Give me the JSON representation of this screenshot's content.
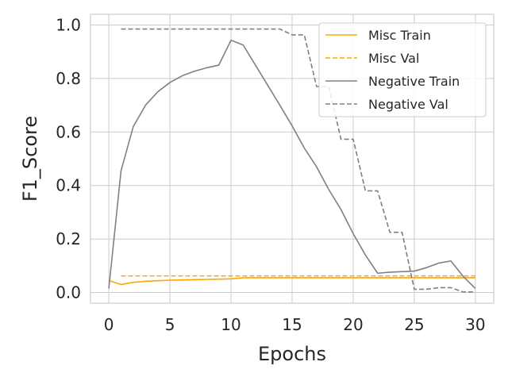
{
  "chart_data": {
    "type": "line",
    "xlabel": "Epochs",
    "ylabel": "F1_Score",
    "xlim": [
      -1.5,
      31.5
    ],
    "ylim": [
      -0.04,
      1.04
    ],
    "xticks": [
      0,
      5,
      10,
      15,
      20,
      25,
      30
    ],
    "yticks": [
      0.0,
      0.2,
      0.4,
      0.6,
      0.8,
      1.0
    ],
    "xtick_labels": [
      "0",
      "5",
      "10",
      "15",
      "20",
      "25",
      "30"
    ],
    "ytick_labels": [
      "0.0",
      "0.2",
      "0.4",
      "0.6",
      "0.8",
      "1.0"
    ],
    "grid": true,
    "legend_position": "top-right",
    "series": [
      {
        "name": "Misc Train",
        "color": "#FFA500",
        "dash": "solid",
        "x": [
          0,
          1,
          2,
          3,
          4,
          5,
          6,
          7,
          8,
          9,
          10,
          11,
          12,
          13,
          14,
          15,
          16,
          17,
          18,
          19,
          20,
          21,
          22,
          23,
          24,
          25,
          26,
          27,
          28,
          29,
          30
        ],
        "y": [
          0.045,
          0.03,
          0.038,
          0.042,
          0.044,
          0.046,
          0.047,
          0.048,
          0.049,
          0.05,
          0.051,
          0.055,
          0.055,
          0.055,
          0.055,
          0.055,
          0.055,
          0.055,
          0.055,
          0.055,
          0.055,
          0.055,
          0.055,
          0.055,
          0.055,
          0.055,
          0.055,
          0.055,
          0.055,
          0.055,
          0.055
        ]
      },
      {
        "name": "Misc Val",
        "color": "#FFA500",
        "dash": "dashed",
        "x": [
          1,
          2,
          3,
          4,
          5,
          6,
          7,
          8,
          9,
          10,
          11,
          12,
          13,
          14,
          15,
          16,
          17,
          18,
          19,
          20,
          21,
          22,
          23,
          24,
          25,
          26,
          27,
          28,
          29,
          30
        ],
        "y": [
          0.062,
          0.062,
          0.062,
          0.062,
          0.062,
          0.062,
          0.062,
          0.062,
          0.062,
          0.062,
          0.062,
          0.062,
          0.062,
          0.062,
          0.062,
          0.062,
          0.062,
          0.062,
          0.062,
          0.062,
          0.062,
          0.062,
          0.062,
          0.062,
          0.062,
          0.062,
          0.062,
          0.062,
          0.062,
          0.062
        ]
      },
      {
        "name": "Negative Train",
        "color": "#808080",
        "dash": "solid",
        "x": [
          0,
          1,
          2,
          3,
          4,
          5,
          6,
          7,
          8,
          9,
          10,
          11,
          12,
          13,
          14,
          15,
          16,
          17,
          18,
          19,
          20,
          21,
          22,
          23,
          24,
          25,
          26,
          27,
          28,
          29,
          30
        ],
        "y": [
          0.015,
          0.455,
          0.62,
          0.7,
          0.75,
          0.785,
          0.81,
          0.827,
          0.84,
          0.85,
          0.943,
          0.925,
          0.85,
          0.775,
          0.7,
          0.623,
          0.54,
          0.47,
          0.385,
          0.31,
          0.22,
          0.14,
          0.072,
          0.076,
          0.078,
          0.08,
          0.093,
          0.11,
          0.118,
          0.06,
          0.015
        ]
      },
      {
        "name": "Negative Val",
        "color": "#808080",
        "dash": "dashed",
        "x": [
          1,
          2,
          3,
          4,
          5,
          6,
          7,
          8,
          9,
          10,
          11,
          12,
          13,
          14,
          15,
          16,
          17,
          18,
          19,
          20,
          21,
          22,
          23,
          24,
          25,
          26,
          27,
          28,
          29,
          30
        ],
        "y": [
          0.985,
          0.985,
          0.985,
          0.985,
          0.985,
          0.985,
          0.985,
          0.985,
          0.985,
          0.985,
          0.985,
          0.985,
          0.985,
          0.985,
          0.963,
          0.963,
          0.77,
          0.77,
          0.573,
          0.573,
          0.38,
          0.38,
          0.225,
          0.225,
          0.012,
          0.012,
          0.018,
          0.018,
          0.002,
          0.002
        ]
      }
    ]
  }
}
